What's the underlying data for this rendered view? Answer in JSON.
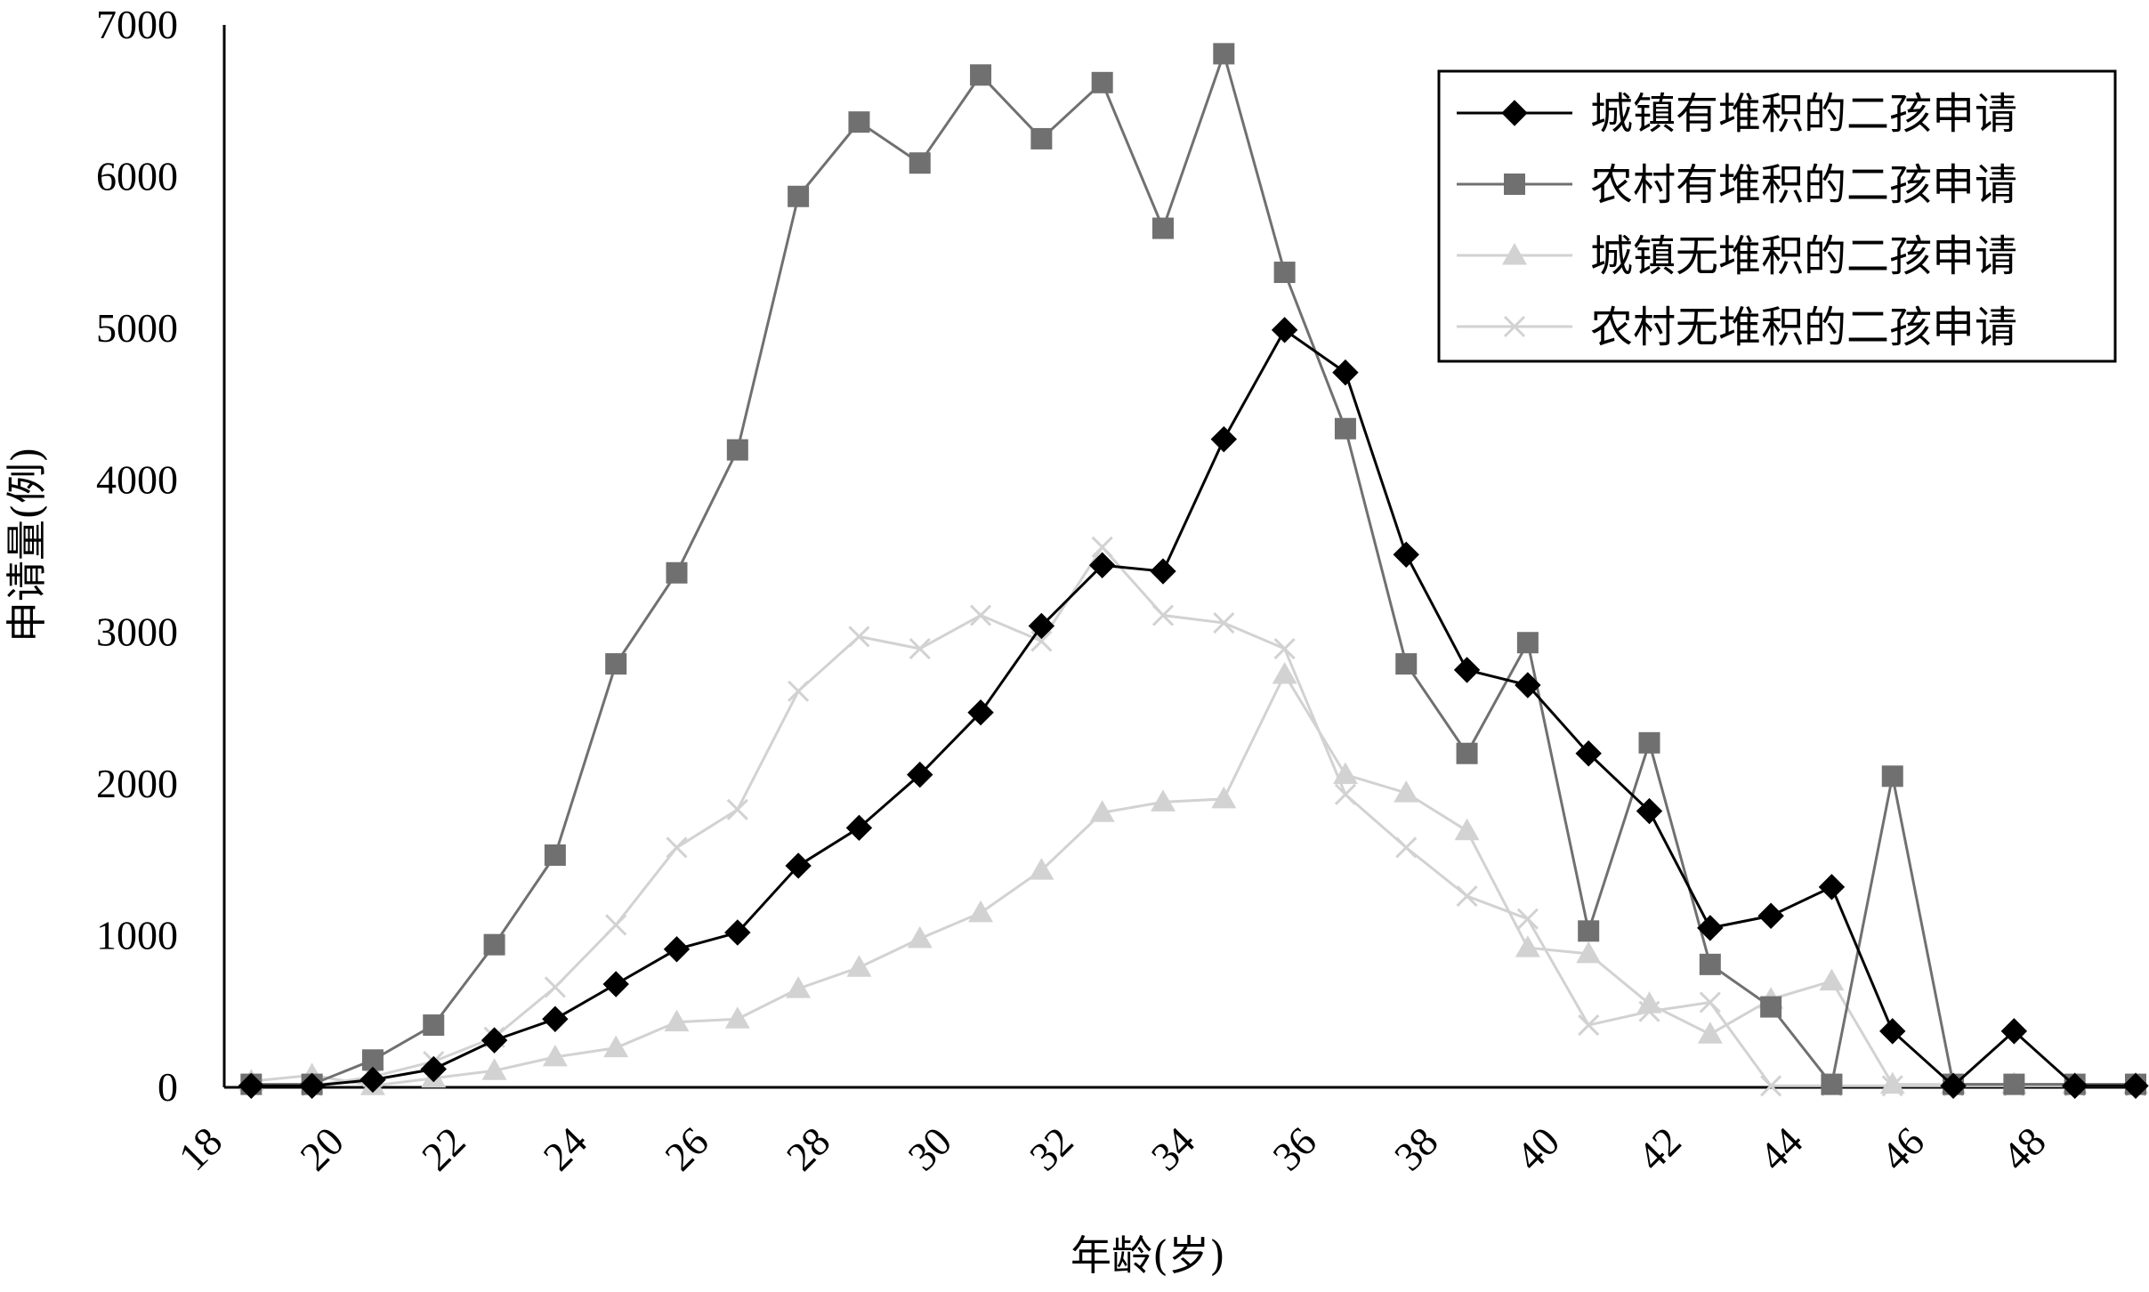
{
  "chart_data": {
    "type": "line",
    "title": "",
    "xlabel": "年龄(岁)",
    "ylabel": "申请量(例)",
    "xlim": [
      18,
      50
    ],
    "ylim": [
      0,
      7000
    ],
    "xticks": [
      18,
      20,
      22,
      24,
      26,
      28,
      30,
      32,
      34,
      36,
      38,
      40,
      42,
      44,
      46,
      48
    ],
    "yticks": [
      0,
      1000,
      2000,
      3000,
      4000,
      5000,
      6000,
      7000
    ],
    "grid": false,
    "legend_position": "top-right",
    "x": [
      19,
      20,
      21,
      22,
      23,
      24,
      25,
      26,
      27,
      28,
      29,
      30,
      31,
      32,
      33,
      34,
      35,
      36,
      37,
      38,
      39,
      40,
      41,
      42,
      43,
      44,
      45,
      46,
      47,
      48,
      49,
      50
    ],
    "series": [
      {
        "name": "城镇有堆积的二孩申请",
        "marker": "diamond",
        "color": "#000000",
        "values": [
          10,
          10,
          50,
          120,
          310,
          450,
          680,
          910,
          1020,
          1460,
          1710,
          2060,
          2470,
          3040,
          3440,
          3400,
          4270,
          4990,
          4710,
          3510,
          2750,
          2650,
          2200,
          1820,
          1050,
          1130,
          1320,
          370,
          10,
          370,
          10,
          10
        ]
      },
      {
        "name": "农村有堆积的二孩申请",
        "marker": "square",
        "color": "#707070",
        "values": [
          20,
          20,
          180,
          410,
          940,
          1530,
          2790,
          3390,
          4200,
          5870,
          6360,
          6090,
          6670,
          6250,
          6620,
          5660,
          6810,
          5370,
          4340,
          2790,
          2200,
          2930,
          1030,
          2270,
          810,
          530,
          20,
          2050,
          20,
          20,
          20,
          20
        ]
      },
      {
        "name": "城镇无堆积的二孩申请",
        "marker": "triangle",
        "color": "#d2d2d2",
        "values": [
          40,
          80,
          10,
          60,
          110,
          200,
          260,
          430,
          450,
          650,
          790,
          980,
          1150,
          1430,
          1810,
          1880,
          1900,
          2720,
          2060,
          1940,
          1690,
          920,
          880,
          550,
          350,
          580,
          700,
          20,
          20,
          20,
          20,
          20
        ]
      },
      {
        "name": "农村无堆积的二孩申请",
        "marker": "x",
        "color": "#d2d2d2",
        "values": [
          20,
          10,
          70,
          170,
          330,
          660,
          1070,
          1580,
          1830,
          2610,
          2970,
          2890,
          3110,
          2940,
          3560,
          3110,
          3060,
          2890,
          1930,
          1580,
          1260,
          1110,
          410,
          500,
          560,
          10,
          10,
          10,
          10,
          10,
          10,
          10
        ]
      }
    ]
  }
}
